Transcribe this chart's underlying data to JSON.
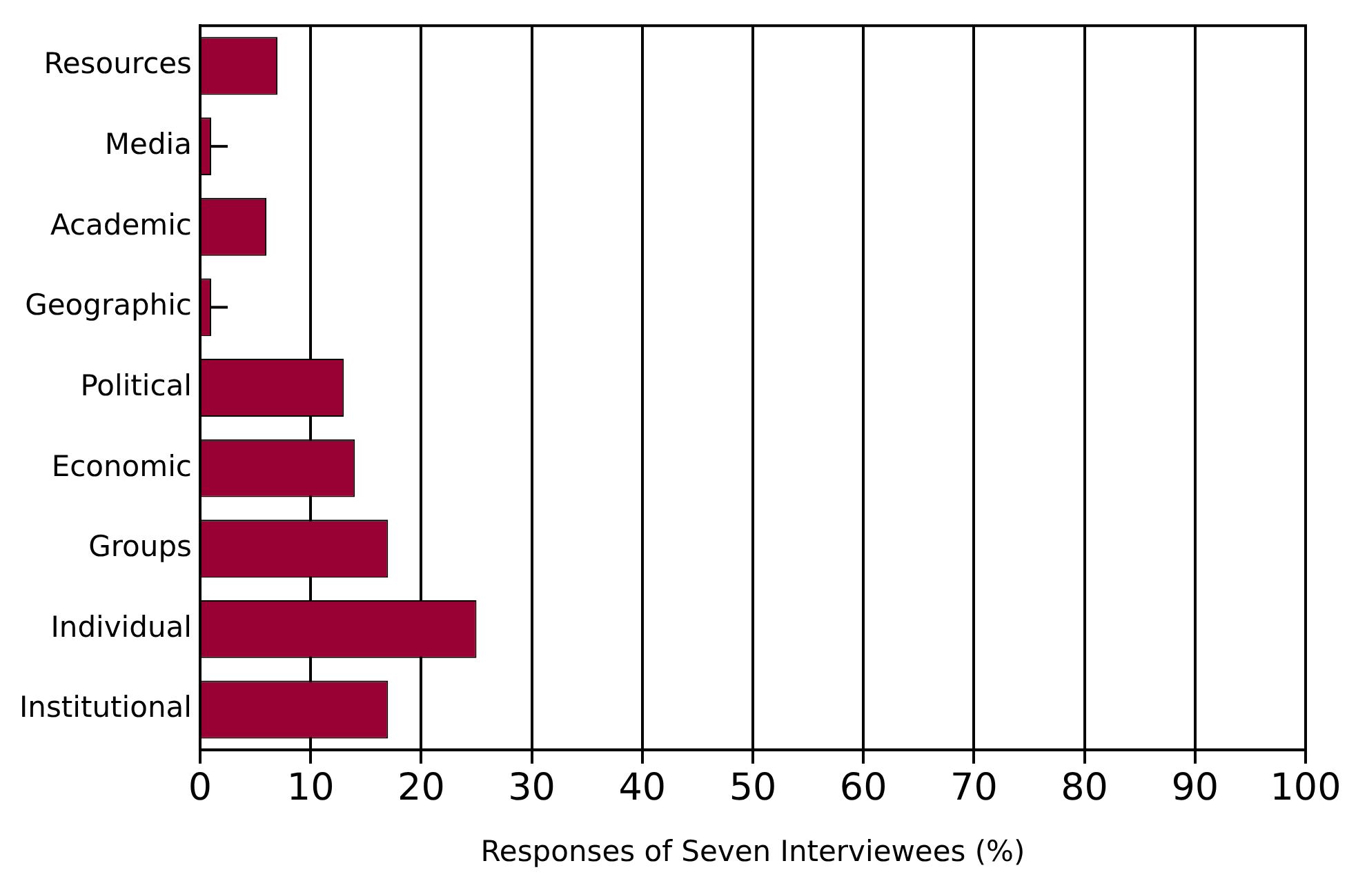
{
  "chart_data": {
    "type": "bar",
    "orientation": "horizontal",
    "xlabel": "Responses of Seven Interviewees (%)",
    "categories": [
      "Resources",
      "Media",
      "Academic",
      "Geographic",
      "Political",
      "Economic",
      "Groups",
      "Individual",
      "Institutional"
    ],
    "values": [
      7,
      1,
      6,
      1,
      13,
      14,
      17,
      25,
      17
    ],
    "errors": [
      null,
      [
        1,
        2.5
      ],
      null,
      [
        1,
        2.5
      ],
      null,
      null,
      null,
      null,
      null
    ],
    "color": "#990033",
    "xlim": [
      0,
      100
    ],
    "xticks": [
      0,
      10,
      20,
      30,
      40,
      50,
      60,
      70,
      80,
      90,
      100
    ],
    "grid": "x",
    "legend": false
  }
}
